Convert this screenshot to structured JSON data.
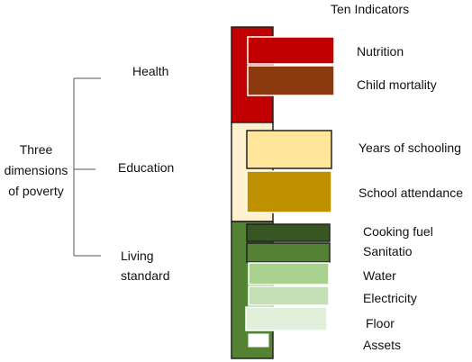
{
  "title": "Ten Indicators",
  "root_label": [
    "Three",
    "dimensions",
    "of poverty"
  ],
  "dimensions": [
    {
      "label": [
        "Health"
      ],
      "color": "#c00000"
    },
    {
      "label": [
        "Education"
      ],
      "color": "#fdf1d0"
    },
    {
      "label": [
        "Living",
        "standard"
      ],
      "color": "#548235"
    }
  ],
  "indicators": [
    {
      "label": "Nutrition",
      "color": "#c00000"
    },
    {
      "label": "Child mortality",
      "color": "#8b3a0f"
    },
    {
      "label": "Years of schooling",
      "color": "#fee599"
    },
    {
      "label": "School attendance",
      "color": "#bf9000"
    },
    {
      "label": "Cooking fuel",
      "color": "#375623"
    },
    {
      "label": "Sanitatio",
      "color": "#548235"
    },
    {
      "label": "Water",
      "color": "#a9d18e"
    },
    {
      "label": "Electricity",
      "color": "#c5e0b4"
    },
    {
      "label": "Floor",
      "color": "#e2efda"
    },
    {
      "label": "Assets",
      "color": "#ffffff"
    }
  ]
}
